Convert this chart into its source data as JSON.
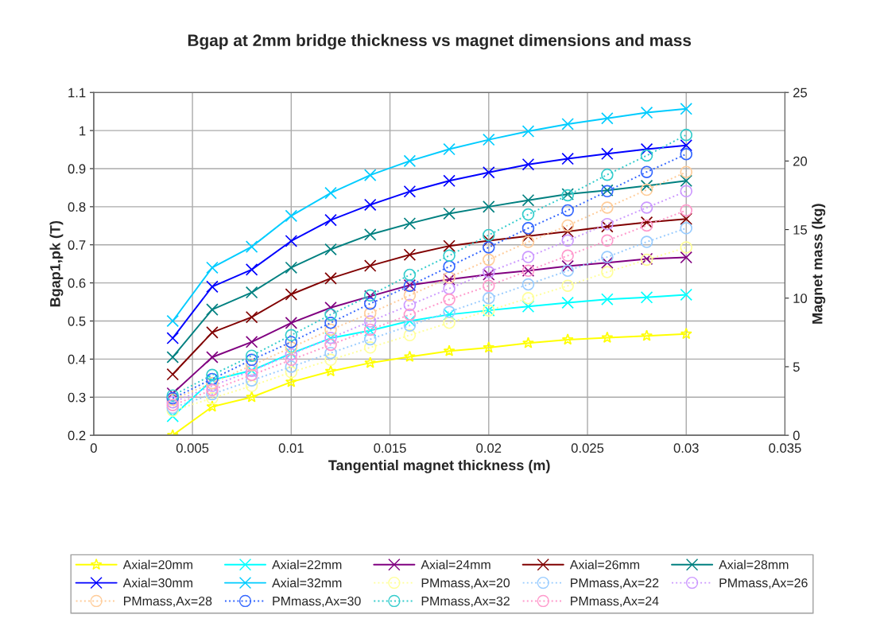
{
  "chart_data": {
    "type": "line",
    "title": "Bgap at 2mm bridge thickness vs magnet dimensions and mass",
    "xlabel": "Tangential magnet thickness (m)",
    "ylabel": "Bgap1,pk (T)",
    "y2label": "Magnet mass (kg)",
    "x": [
      0.004,
      0.006,
      0.008,
      0.01,
      0.012,
      0.014,
      0.016,
      0.018,
      0.02,
      0.022,
      0.024,
      0.026,
      0.028,
      0.03
    ],
    "xlim": [
      0,
      0.035
    ],
    "xticks": [
      0,
      0.005,
      0.01,
      0.015,
      0.02,
      0.025,
      0.03,
      0.035
    ],
    "ylim": [
      0.2,
      1.1
    ],
    "yticks": [
      0.2,
      0.3,
      0.4,
      0.5,
      0.6,
      0.7,
      0.8,
      0.9,
      1,
      1.1
    ],
    "y2lim": [
      0,
      25
    ],
    "y2ticks": [
      0,
      5,
      10,
      15,
      20,
      25
    ],
    "grid": true,
    "legend": "bottom",
    "series": [
      {
        "name": "Axial=20mm",
        "color": "#ffff00",
        "marker": "star",
        "line_style": "solid",
        "values": [
          0.2,
          0.275,
          0.3,
          0.34,
          0.368,
          0.39,
          0.406,
          0.421,
          0.43,
          0.442,
          0.451,
          0.456,
          0.461,
          0.466
        ]
      },
      {
        "name": "Axial=22mm",
        "color": "#00ffff",
        "marker": "cross",
        "line_style": "solid",
        "values": [
          0.25,
          0.345,
          0.37,
          0.415,
          0.455,
          0.475,
          0.5,
          0.517,
          0.528,
          0.538,
          0.548,
          0.557,
          0.562,
          0.569
        ]
      },
      {
        "name": "Axial=24mm",
        "color": "#800080",
        "marker": "cross",
        "line_style": "solid",
        "values": [
          0.31,
          0.405,
          0.445,
          0.495,
          0.535,
          0.565,
          0.594,
          0.609,
          0.622,
          0.632,
          0.644,
          0.653,
          0.663,
          0.667
        ]
      },
      {
        "name": "Axial=26mm",
        "color": "#800000",
        "marker": "cross",
        "line_style": "solid",
        "values": [
          0.36,
          0.47,
          0.51,
          0.57,
          0.612,
          0.645,
          0.674,
          0.697,
          0.711,
          0.723,
          0.735,
          0.748,
          0.759,
          0.768
        ]
      },
      {
        "name": "Axial=28mm",
        "color": "#008080",
        "marker": "cross",
        "line_style": "solid",
        "values": [
          0.405,
          0.53,
          0.575,
          0.64,
          0.688,
          0.727,
          0.756,
          0.782,
          0.8,
          0.817,
          0.833,
          0.843,
          0.855,
          0.868
        ]
      },
      {
        "name": "Axial=30mm",
        "color": "#0000ff",
        "marker": "cross",
        "line_style": "solid",
        "values": [
          0.455,
          0.59,
          0.635,
          0.71,
          0.765,
          0.805,
          0.84,
          0.868,
          0.89,
          0.911,
          0.926,
          0.939,
          0.951,
          0.961
        ]
      },
      {
        "name": "Axial=32mm",
        "color": "#00ccff",
        "marker": "cross",
        "line_style": "solid",
        "values": [
          0.5,
          0.64,
          0.695,
          0.776,
          0.836,
          0.883,
          0.92,
          0.951,
          0.976,
          0.998,
          1.017,
          1.032,
          1.047,
          1.057
        ]
      },
      {
        "name": "PMmass,Ax=20",
        "color": "#ffff99",
        "marker": "circle",
        "line_style": "dotted",
        "axis": "y2",
        "values": [
          1.8,
          2.7,
          3.6,
          4.6,
          5.5,
          6.4,
          7.3,
          8.2,
          9.1,
          10.0,
          10.9,
          11.9,
          12.8,
          13.7
        ]
      },
      {
        "name": "PMmass,Ax=22",
        "color": "#99ccff",
        "marker": "circle",
        "line_style": "dotted",
        "axis": "y2",
        "values": [
          2.0,
          3.0,
          4.0,
          5.0,
          6.0,
          7.0,
          8.0,
          9.0,
          10.0,
          11.0,
          12.0,
          13.0,
          14.1,
          15.1
        ]
      },
      {
        "name": "PMmass,Ax=26",
        "color": "#cc99ff",
        "marker": "circle",
        "line_style": "dotted",
        "axis": "y2",
        "values": [
          2.4,
          3.6,
          4.7,
          5.9,
          7.1,
          8.3,
          9.5,
          10.7,
          11.9,
          13.0,
          14.2,
          15.4,
          16.6,
          17.8
        ]
      },
      {
        "name": "PMmass,Ax=28",
        "color": "#ffcc99",
        "marker": "circle",
        "line_style": "dotted",
        "axis": "y2",
        "values": [
          2.6,
          3.8,
          5.1,
          6.4,
          7.7,
          8.9,
          10.2,
          11.5,
          12.8,
          14.1,
          15.3,
          16.6,
          17.9,
          19.2
        ]
      },
      {
        "name": "PMmass,Ax=30",
        "color": "#3366ff",
        "marker": "circle",
        "line_style": "dotted",
        "axis": "y2",
        "values": [
          2.7,
          4.1,
          5.5,
          6.8,
          8.2,
          9.6,
          10.9,
          12.3,
          13.7,
          15.1,
          16.4,
          17.8,
          19.2,
          20.5
        ]
      },
      {
        "name": "PMmass,Ax=32",
        "color": "#33cccc",
        "marker": "circle",
        "line_style": "dotted",
        "axis": "y2",
        "values": [
          2.9,
          4.4,
          5.8,
          7.3,
          8.8,
          10.2,
          11.7,
          13.1,
          14.6,
          16.1,
          17.5,
          19.0,
          20.4,
          21.9
        ]
      },
      {
        "name": "PMmass,Ax=24",
        "color": "#ff99cc",
        "marker": "circle",
        "line_style": "dotted",
        "axis": "y2",
        "values": [
          2.2,
          3.3,
          4.4,
          5.5,
          6.6,
          7.7,
          8.8,
          9.9,
          10.9,
          12.0,
          13.1,
          14.2,
          15.3,
          16.4
        ]
      }
    ]
  }
}
